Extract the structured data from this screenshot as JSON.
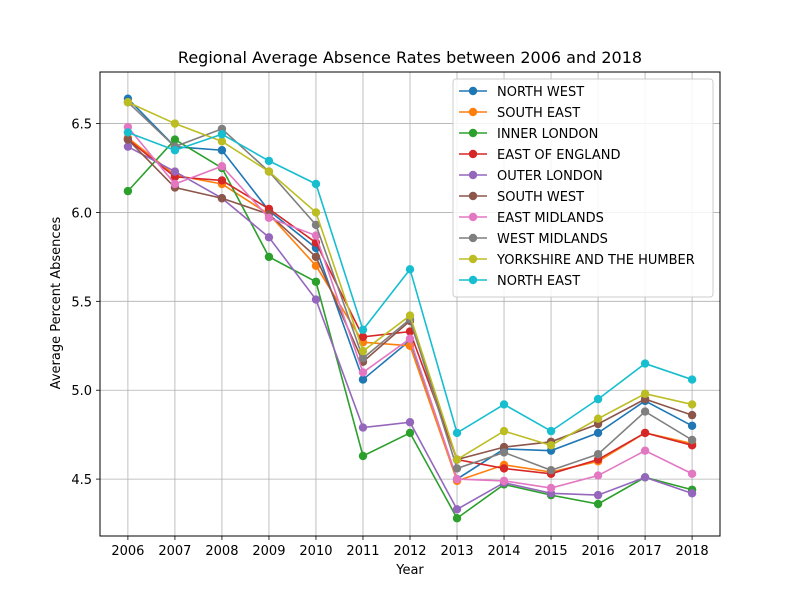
{
  "chart_data": {
    "type": "line",
    "title": "Regional Average Absence Rates between 2006 and 2018",
    "xlabel": "Year",
    "ylabel": "Average Percent Absences",
    "x": [
      "2006",
      "2007",
      "2008",
      "2009",
      "2010",
      "2011",
      "2012",
      "2013",
      "2014",
      "2015",
      "2016",
      "2017",
      "2018"
    ],
    "ylim": [
      4.18,
      6.79
    ],
    "yticks": [
      4.5,
      5.0,
      5.5,
      6.0,
      6.5
    ],
    "ytick_labels": [
      "4.5",
      "5.0",
      "5.5",
      "6.0",
      "6.5"
    ],
    "grid": true,
    "legend": "top-right",
    "series": [
      {
        "name": "NORTH WEST",
        "color": "#1f77b4",
        "values": [
          6.64,
          6.37,
          6.35,
          6.01,
          5.8,
          5.06,
          5.28,
          4.5,
          4.67,
          4.66,
          4.76,
          4.94,
          4.8
        ]
      },
      {
        "name": "SOUTH EAST",
        "color": "#ff7f0e",
        "values": [
          6.42,
          6.21,
          6.16,
          5.99,
          5.7,
          5.27,
          5.25,
          4.49,
          4.58,
          4.54,
          4.6,
          4.76,
          4.7
        ]
      },
      {
        "name": "INNER LONDON",
        "color": "#2ca02c",
        "values": [
          6.12,
          6.41,
          6.25,
          5.75,
          5.61,
          4.63,
          4.76,
          4.28,
          4.47,
          4.41,
          4.36,
          4.51,
          4.44
        ]
      },
      {
        "name": "EAST OF ENGLAND",
        "color": "#d62728",
        "values": [
          6.41,
          6.2,
          6.18,
          6.02,
          5.83,
          5.3,
          5.33,
          4.61,
          4.56,
          4.53,
          4.61,
          4.76,
          4.69
        ]
      },
      {
        "name": "OUTER LONDON",
        "color": "#9467bd",
        "values": [
          6.37,
          6.23,
          6.08,
          5.86,
          5.51,
          4.79,
          4.82,
          4.33,
          4.48,
          4.42,
          4.41,
          4.51,
          4.42
        ]
      },
      {
        "name": "SOUTH WEST",
        "color": "#8c564b",
        "values": [
          6.41,
          6.14,
          6.08,
          5.99,
          5.75,
          5.16,
          5.39,
          4.61,
          4.68,
          4.71,
          4.81,
          4.95,
          4.86
        ]
      },
      {
        "name": "EAST MIDLANDS",
        "color": "#e377c2",
        "values": [
          6.48,
          6.16,
          6.26,
          5.97,
          5.87,
          5.1,
          5.29,
          4.5,
          4.49,
          4.45,
          4.52,
          4.66,
          4.53
        ]
      },
      {
        "name": "WEST MIDLANDS",
        "color": "#7f7f7f",
        "values": [
          6.62,
          6.37,
          6.47,
          6.23,
          5.93,
          5.18,
          5.4,
          4.56,
          4.65,
          4.55,
          4.64,
          4.88,
          4.72
        ]
      },
      {
        "name": "YORKSHIRE AND THE HUMBER",
        "color": "#bcbd22",
        "values": [
          6.62,
          6.5,
          6.4,
          6.23,
          6.0,
          5.22,
          5.42,
          4.61,
          4.77,
          4.69,
          4.84,
          4.98,
          4.92
        ]
      },
      {
        "name": "NORTH EAST",
        "color": "#17becf",
        "values": [
          6.45,
          6.35,
          6.44,
          6.29,
          6.16,
          5.34,
          5.68,
          4.76,
          4.92,
          4.77,
          4.95,
          5.15,
          5.06
        ]
      }
    ]
  }
}
